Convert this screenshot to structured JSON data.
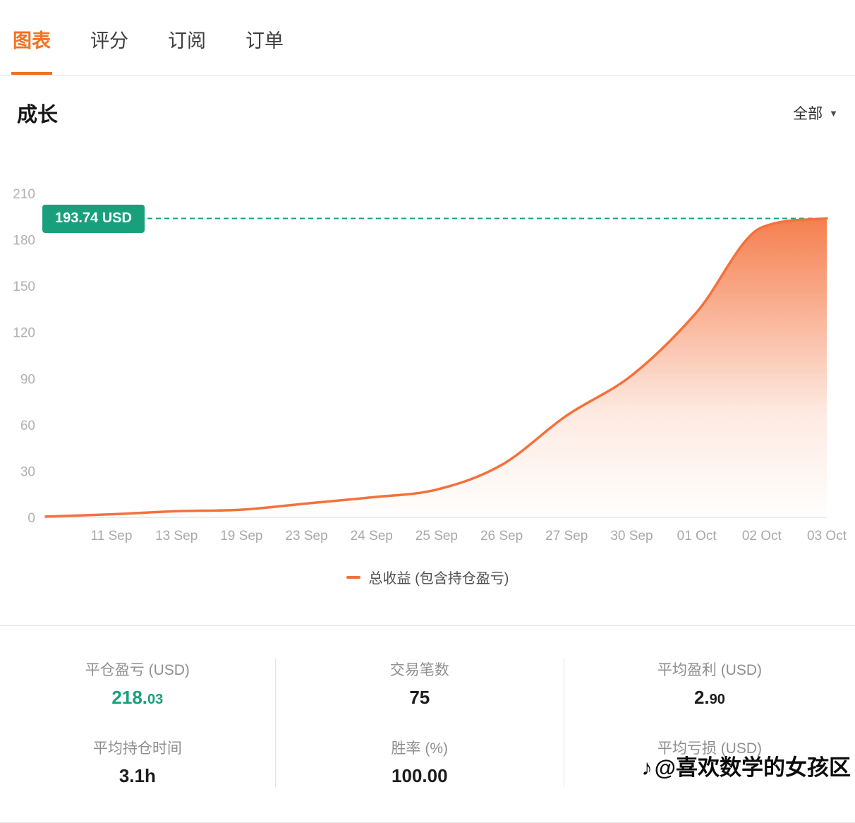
{
  "colors": {
    "accent_orange": "#f4713b",
    "tab_active_orange": "#f4711f",
    "accent_teal": "#18a07c"
  },
  "tabs": [
    {
      "label": "图表",
      "active": true
    },
    {
      "label": "评分",
      "active": false
    },
    {
      "label": "订阅",
      "active": false
    },
    {
      "label": "订单",
      "active": false
    }
  ],
  "section": {
    "title": "成长",
    "filter_value": "全部"
  },
  "chart_data": {
    "type": "area",
    "title": "成长 (Growth)",
    "x": [
      "11 Sep",
      "13 Sep",
      "19 Sep",
      "23 Sep",
      "24 Sep",
      "25 Sep",
      "26 Sep",
      "27 Sep",
      "30 Sep",
      "01 Oct",
      "02 Oct",
      "03 Oct"
    ],
    "values": [
      2,
      4,
      5,
      9,
      13,
      18,
      34,
      66,
      92,
      133,
      188,
      193.74
    ],
    "start_value": 0.5,
    "ylim": [
      0,
      210
    ],
    "yticks": [
      0,
      30,
      60,
      90,
      120,
      150,
      180,
      210
    ],
    "grid": false,
    "current_value": 193.74,
    "current_value_label": "193.74 USD",
    "legend": "总收益 (包含持仓盈亏)",
    "legend_position": "bottom",
    "line_color": "#f4713b",
    "marker_color": "#18a07c"
  },
  "stats": {
    "columns": [
      {
        "top": {
          "label": "平仓盈亏 (USD)",
          "value": "218.",
          "value_small": "03"
        },
        "bottom": {
          "label": "平均持仓时间",
          "value": "3.1h"
        }
      },
      {
        "top": {
          "label": "交易笔数",
          "value": "75"
        },
        "bottom": {
          "label": "胜率 (%)",
          "value": "100.00"
        }
      },
      {
        "top": {
          "label": "平均盈利 (USD)",
          "value": "2.",
          "value_small": "90"
        },
        "bottom": {
          "label": "平均亏损 (USD)",
          "value": ""
        }
      }
    ]
  },
  "watermark": {
    "icon": "♪",
    "text": "@喜欢数学的女孩区"
  }
}
